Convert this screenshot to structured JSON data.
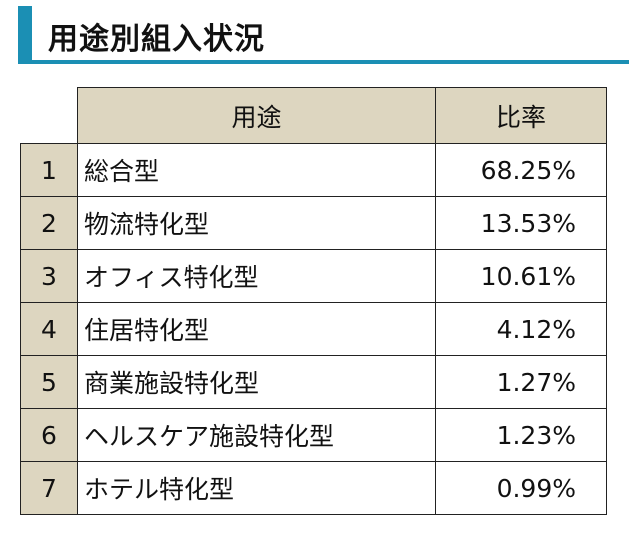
{
  "title": "用途別組入状況",
  "accent_color": "#1b8fb4",
  "header_fill": "#ddd6c0",
  "table": {
    "headers": {
      "use": "用途",
      "rate": "比率"
    },
    "rows": [
      {
        "no": "1",
        "use": "総合型",
        "rate": "68.25%"
      },
      {
        "no": "2",
        "use": "物流特化型",
        "rate": "13.53%"
      },
      {
        "no": "3",
        "use": "オフィス特化型",
        "rate": "10.61%"
      },
      {
        "no": "4",
        "use": "住居特化型",
        "rate": "4.12%"
      },
      {
        "no": "5",
        "use": "商業施設特化型",
        "rate": "1.27%"
      },
      {
        "no": "6",
        "use": "ヘルスケア施設特化型",
        "rate": "1.23%"
      },
      {
        "no": "7",
        "use": "ホテル特化型",
        "rate": "0.99%"
      }
    ]
  }
}
